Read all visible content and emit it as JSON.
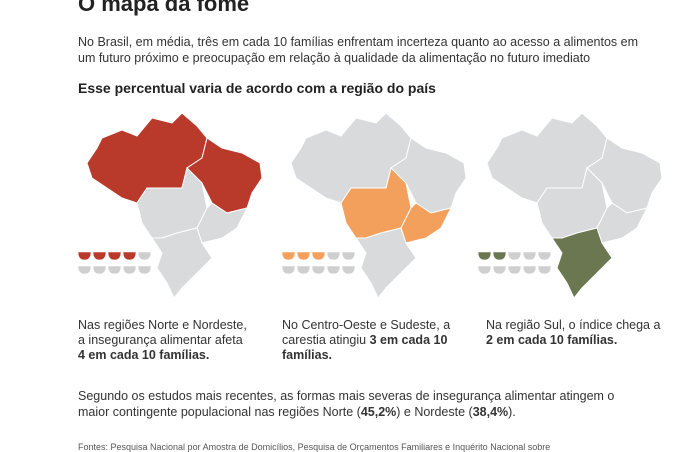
{
  "title": "O mapa da fome",
  "intro": "No Brasil, em média, três em cada 10 famílias enfrentam incerteza quanto ao acesso a alimentos em um futuro próximo e preocupação em relação à qualidade da alimentação no futuro imediato",
  "subtitle": "Esse percentual varia de acordo com a região do país",
  "panels": [
    {
      "text": "Nas regiões Norte e Nordeste, a insegurança alimentar afeta ",
      "highlight": "4 em cada 10 famílias.",
      "bowls_filled": 4,
      "bowls_total": 10,
      "color": "#b93a2b"
    },
    {
      "text": "No Centro-Oeste e Sudeste, a carestia atingiu ",
      "highlight": "3 em cada 10 famílias.",
      "bowls_filled": 3,
      "bowls_total": 10,
      "color": "#f2a05c"
    },
    {
      "text": "Na região Sul, o índice chega a ",
      "highlight": "2 em cada 10 famílias.",
      "bowls_filled": 2,
      "bowls_total": 10,
      "color": "#6b7751"
    }
  ],
  "footer": {
    "parts": [
      "Segundo os estudos mais recentes, as formas mais severas de insegurança alimentar atingem o maior contingente populacional nas regiões Norte (",
      "45,2%",
      ") e Nordeste (",
      "38,4%",
      ")."
    ]
  },
  "source": "Fontes: Pesquisa Nacional por Amostra de Domicílios, Pesquisa de Orçamentos Familiares e Inquérito Nacional sobre"
}
